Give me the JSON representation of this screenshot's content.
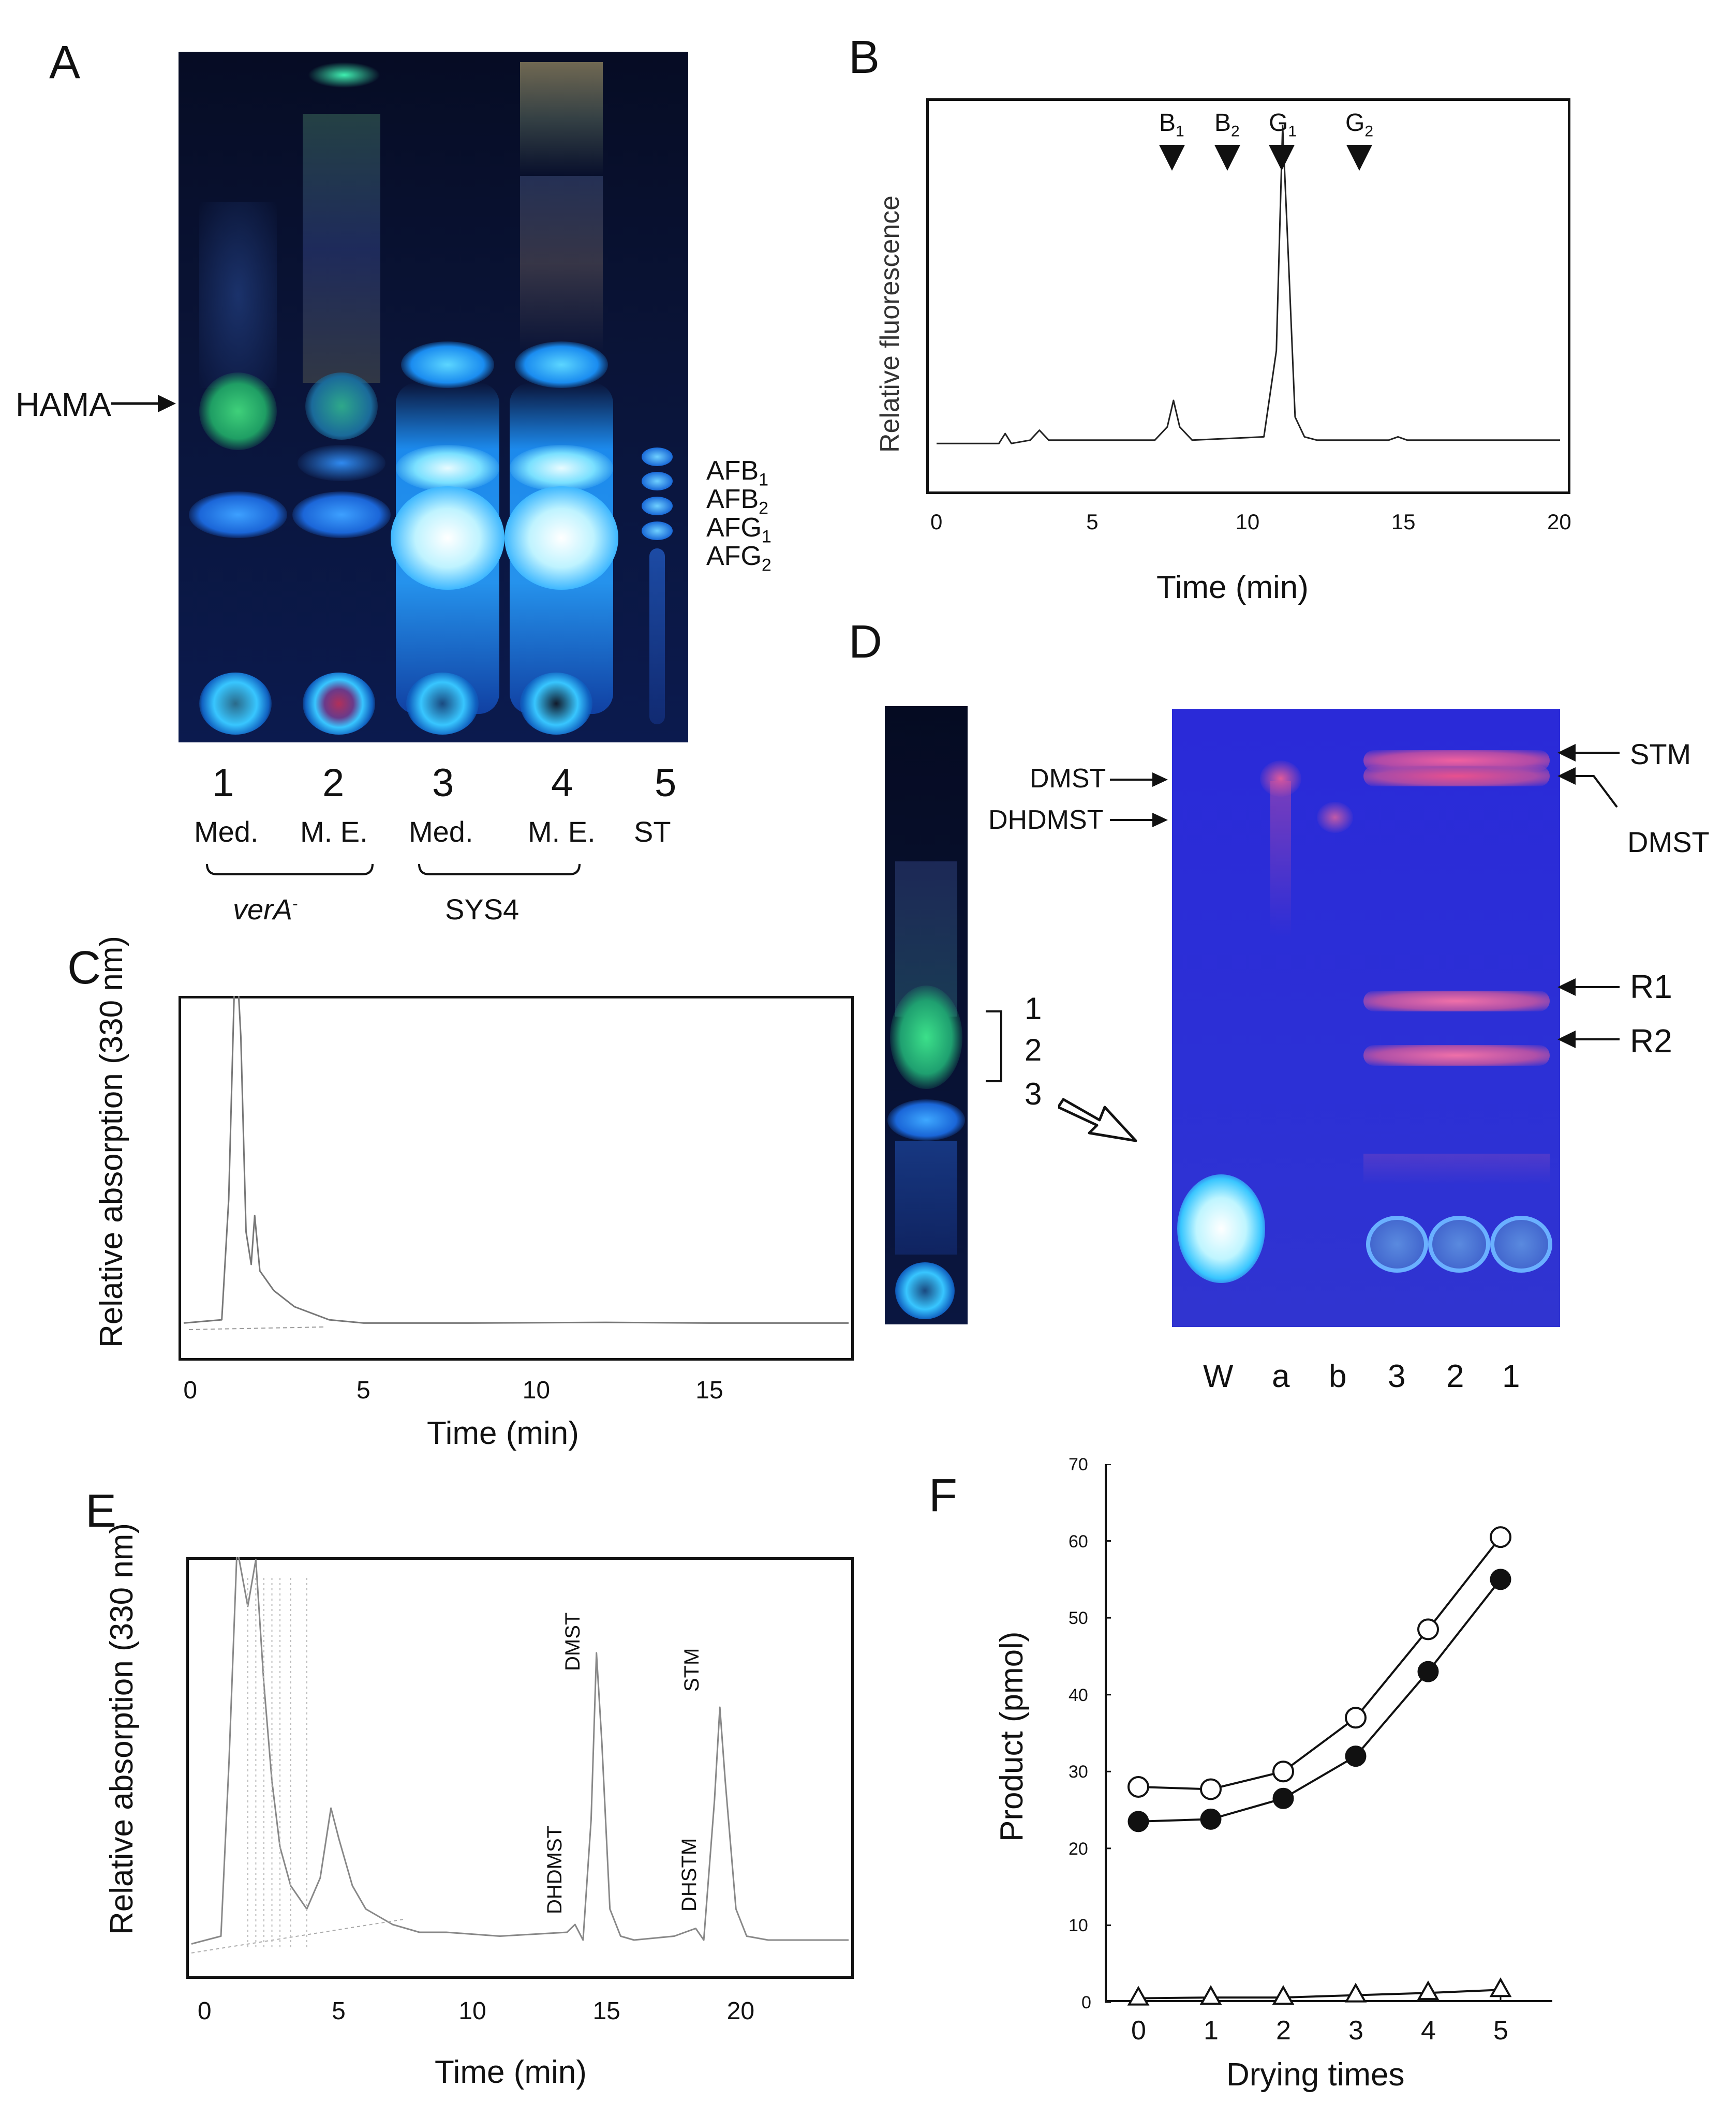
{
  "panels": {
    "A": {
      "label": "A",
      "arrow_label": "HAMA",
      "lane_numbers": [
        "1",
        "2",
        "3",
        "4",
        "5"
      ],
      "lane_sublabels": [
        "Med.",
        "M. E.",
        "Med.",
        "M. E.",
        "ST"
      ],
      "group_labels": [
        "verA",
        "SYS4"
      ],
      "group_label_sup": "-",
      "standards": [
        {
          "base": "AFB",
          "sub": "1"
        },
        {
          "base": "AFB",
          "sub": "2"
        },
        {
          "base": "AFG",
          "sub": "1"
        },
        {
          "base": "AFG",
          "sub": "2"
        }
      ]
    },
    "B": {
      "label": "B",
      "markers": [
        {
          "base": "B",
          "sub": "1"
        },
        {
          "base": "B",
          "sub": "2"
        },
        {
          "base": "G",
          "sub": "1"
        },
        {
          "base": "G",
          "sub": "2"
        }
      ]
    },
    "C": {
      "label": "C"
    },
    "D": {
      "label": "D",
      "bracket_numbers": [
        "1",
        "2",
        "3"
      ],
      "left_labels": [
        "DMST",
        "DHDMST"
      ],
      "right_labels": [
        "STM",
        "DMST",
        "R1",
        "R2"
      ],
      "lane_labels": [
        "W",
        "a",
        "b",
        "3",
        "2",
        "1"
      ]
    },
    "E": {
      "label": "E",
      "peak_labels": [
        "DMST",
        "STM",
        "DHDMST",
        "DHSTM"
      ]
    },
    "F": {
      "label": "F"
    }
  },
  "chart_data": [
    {
      "panel": "B",
      "type": "line",
      "xlabel": "Time (min)",
      "ylabel": "Relative fluorescence",
      "xlim": [
        0,
        20
      ],
      "xticks": [
        "0",
        "5",
        "10",
        "15",
        "20"
      ],
      "series": [
        {
          "x": [
            0,
            2.0,
            2.2,
            2.4,
            3.0,
            3.3,
            3.6,
            7.0,
            7.4,
            7.6,
            7.8,
            8.2,
            10.5,
            10.9,
            11.1,
            11.3,
            11.5,
            11.8,
            12.2,
            14.5,
            14.8,
            15.1,
            20
          ],
          "y": [
            0.02,
            0.02,
            0.05,
            0.02,
            0.03,
            0.06,
            0.03,
            0.03,
            0.07,
            0.15,
            0.07,
            0.03,
            0.04,
            0.3,
            0.98,
            0.55,
            0.1,
            0.04,
            0.03,
            0.03,
            0.04,
            0.03,
            0.03
          ]
        }
      ]
    },
    {
      "panel": "C",
      "type": "line",
      "xlabel": "Time (min)",
      "ylabel": "Relative absorption (330 nm)",
      "xlim": [
        -0.2,
        19
      ],
      "xticks": [
        "0",
        "5",
        "10",
        "15"
      ],
      "series": [
        {
          "x": [
            -0.2,
            0.9,
            1.1,
            1.3,
            1.45,
            1.6,
            1.75,
            1.85,
            2.0,
            2.4,
            3.0,
            4.0,
            5.0,
            6.0,
            8.0,
            12.0,
            15.0,
            19.0
          ],
          "y": [
            0.02,
            0.03,
            0.4,
            1.2,
            0.9,
            0.3,
            0.2,
            0.35,
            0.18,
            0.12,
            0.07,
            0.03,
            0.02,
            0.02,
            0.02,
            0.022,
            0.02,
            0.02
          ]
        }
      ]
    },
    {
      "panel": "E",
      "type": "line",
      "xlabel": "Time (min)",
      "ylabel": "Relative absorption (330 nm)",
      "xlim": [
        -0.5,
        24
      ],
      "xticks": [
        "0",
        "5",
        "10",
        "15",
        "20"
      ],
      "series": [
        {
          "x": [
            -0.5,
            0.6,
            0.9,
            1.2,
            1.6,
            1.9,
            2.2,
            2.5,
            2.8,
            3.2,
            3.8,
            4.3,
            4.7,
            5.0,
            5.5,
            6.0,
            7.0,
            8.0,
            9.0,
            11.0,
            13.5,
            13.8,
            14.1,
            14.4,
            14.6,
            14.8,
            15.1,
            15.5,
            16.0,
            17.5,
            18.3,
            18.6,
            19.0,
            19.2,
            19.4,
            19.8,
            20.2,
            21.0,
            24.0
          ],
          "y": [
            0.03,
            0.05,
            0.5,
            1.05,
            0.9,
            1.02,
            0.7,
            0.45,
            0.28,
            0.18,
            0.12,
            0.2,
            0.38,
            0.3,
            0.18,
            0.12,
            0.08,
            0.06,
            0.06,
            0.05,
            0.06,
            0.08,
            0.04,
            0.35,
            0.78,
            0.55,
            0.12,
            0.05,
            0.04,
            0.05,
            0.07,
            0.04,
            0.4,
            0.64,
            0.45,
            0.12,
            0.05,
            0.04,
            0.04
          ]
        }
      ]
    },
    {
      "panel": "F",
      "type": "line",
      "xlabel": "Drying times",
      "ylabel": "Product (pmol)",
      "ylim": [
        0,
        70
      ],
      "xticks": [
        "0",
        "1",
        "2",
        "3",
        "4",
        "5"
      ],
      "yticks": [
        "0",
        "10",
        "20",
        "30",
        "40",
        "50",
        "60",
        "70"
      ],
      "categories": [
        "0",
        "1",
        "2",
        "3",
        "4",
        "5"
      ],
      "series": [
        {
          "marker": "open-circle",
          "values": [
            28,
            27.7,
            30,
            37,
            48.5,
            60.5
          ]
        },
        {
          "marker": "filled-circle",
          "values": [
            23.5,
            23.8,
            26.5,
            32,
            43,
            55
          ]
        },
        {
          "marker": "open-triangle",
          "values": [
            0.5,
            0.6,
            0.6,
            0.9,
            1.2,
            1.6
          ]
        }
      ]
    }
  ]
}
